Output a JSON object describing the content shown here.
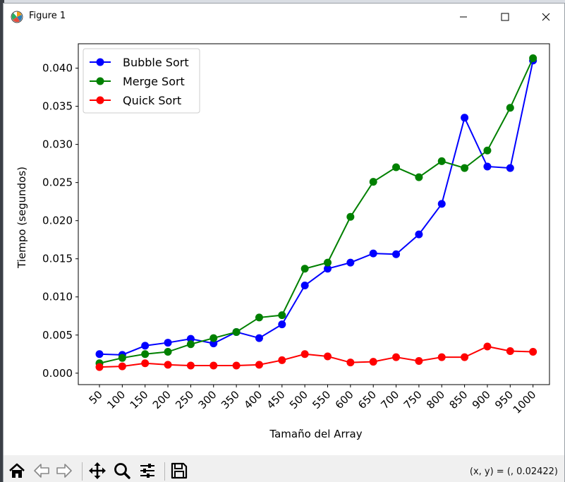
{
  "window": {
    "title": "Figure 1"
  },
  "icons": {
    "app": "matplotlib-figure-icon",
    "minimize": "minimize-icon",
    "maximize": "maximize-icon",
    "close": "close-icon",
    "home": "home-icon",
    "back": "back-arrow-icon",
    "forward": "forward-arrow-icon",
    "pan": "pan-icon",
    "zoom": "zoom-icon",
    "configure": "configure-subplots-icon",
    "save": "save-icon"
  },
  "toolbar": {
    "coords_text": "(x, y) = (, 0.02422)"
  },
  "chart_data": {
    "type": "line",
    "title": "",
    "xlabel": "Tamaño del Array",
    "ylabel": "Tiempo (segundos)",
    "categories": [
      "50",
      "100",
      "150",
      "200",
      "250",
      "300",
      "350",
      "400",
      "450",
      "500",
      "550",
      "600",
      "650",
      "700",
      "750",
      "800",
      "850",
      "900",
      "950",
      "1000"
    ],
    "ylim": [
      -0.0015,
      0.0432
    ],
    "yticks": [
      "0.000",
      "0.005",
      "0.010",
      "0.015",
      "0.020",
      "0.025",
      "0.030",
      "0.035",
      "0.040"
    ],
    "ytick_values": [
      0,
      0.005,
      0.01,
      0.015,
      0.02,
      0.025,
      0.03,
      0.035,
      0.04
    ],
    "legend_position": "top-left",
    "grid": false,
    "series": [
      {
        "name": "Bubble Sort",
        "color": "#0000ff",
        "values": [
          0.0025,
          0.0024,
          0.0036,
          0.004,
          0.0045,
          0.0039,
          0.0054,
          0.0046,
          0.0064,
          0.0115,
          0.0137,
          0.0145,
          0.0157,
          0.0156,
          0.0182,
          0.0222,
          0.0335,
          0.0271,
          0.0269,
          0.041
        ]
      },
      {
        "name": "Merge Sort",
        "color": "#008000",
        "values": [
          0.0013,
          0.002,
          0.0025,
          0.0028,
          0.0038,
          0.0046,
          0.0054,
          0.0073,
          0.0076,
          0.0137,
          0.0145,
          0.0205,
          0.0251,
          0.027,
          0.0257,
          0.0278,
          0.0269,
          0.0292,
          0.0348,
          0.0413
        ]
      },
      {
        "name": "Quick Sort",
        "color": "#ff0000",
        "values": [
          0.0008,
          0.0009,
          0.0013,
          0.0011,
          0.001,
          0.001,
          0.001,
          0.0011,
          0.0017,
          0.0025,
          0.0022,
          0.0014,
          0.0015,
          0.0021,
          0.0016,
          0.0021,
          0.0021,
          0.0035,
          0.0029,
          0.0028
        ]
      }
    ]
  }
}
